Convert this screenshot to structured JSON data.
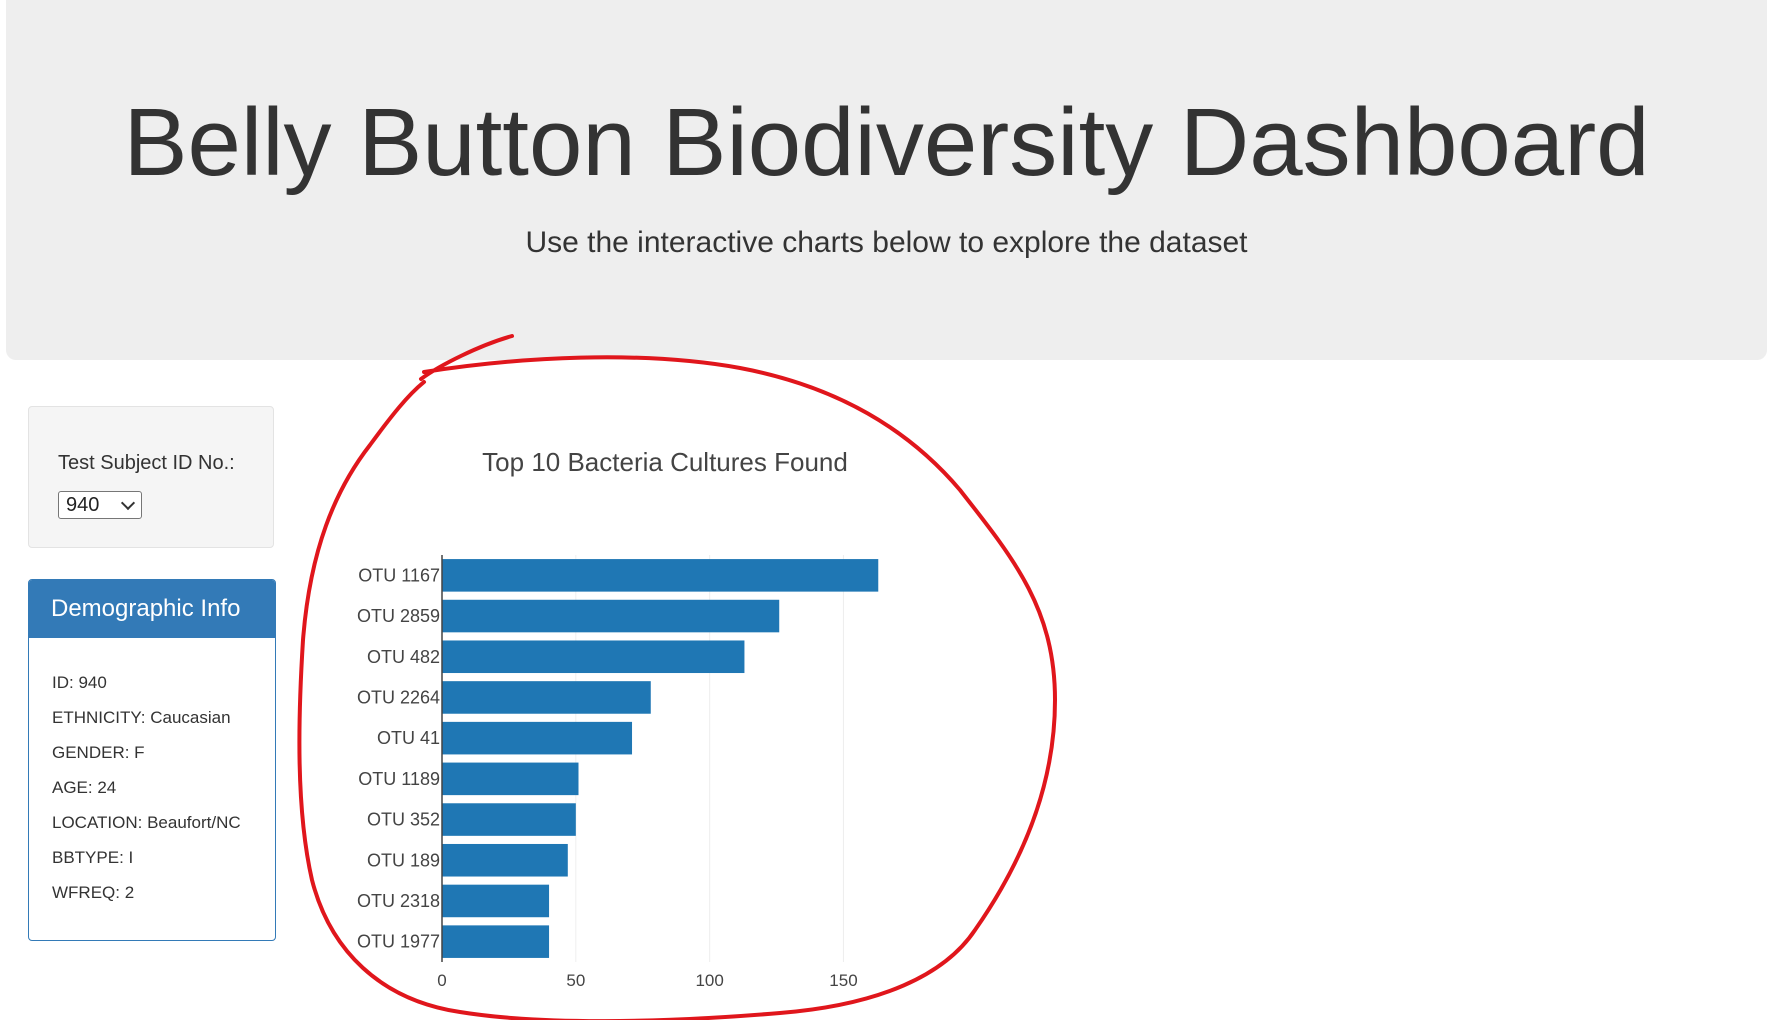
{
  "header": {
    "title": "Belly Button Biodiversity Dashboard",
    "subtitle": "Use the interactive charts below to explore the dataset"
  },
  "selector": {
    "label": "Test Subject ID No.:",
    "selected_value": "940"
  },
  "demographic_panel": {
    "title": "Demographic Info",
    "items": [
      "ID: 940",
      "ETHNICITY: Caucasian",
      "GENDER: F",
      "AGE: 24",
      "LOCATION: Beaufort/NC",
      "BBTYPE: I",
      "WFREQ: 2"
    ]
  },
  "colors": {
    "bar": "#1f77b4",
    "panel_header": "#337ab7",
    "annotation": "#e0161c"
  },
  "chart_data": {
    "type": "bar",
    "orientation": "horizontal",
    "title": "Top 10 Bacteria Cultures Found",
    "xlabel": "",
    "ylabel": "",
    "categories": [
      "OTU 1167",
      "OTU 2859",
      "OTU 482",
      "OTU 2264",
      "OTU 41",
      "OTU 1189",
      "OTU 352",
      "OTU 189",
      "OTU 2318",
      "OTU 1977"
    ],
    "values": [
      163,
      126,
      113,
      78,
      71,
      51,
      50,
      47,
      40,
      40
    ],
    "xlim": [
      0,
      170
    ],
    "xticks": [
      0,
      50,
      100,
      150
    ],
    "grid": "vertical"
  }
}
